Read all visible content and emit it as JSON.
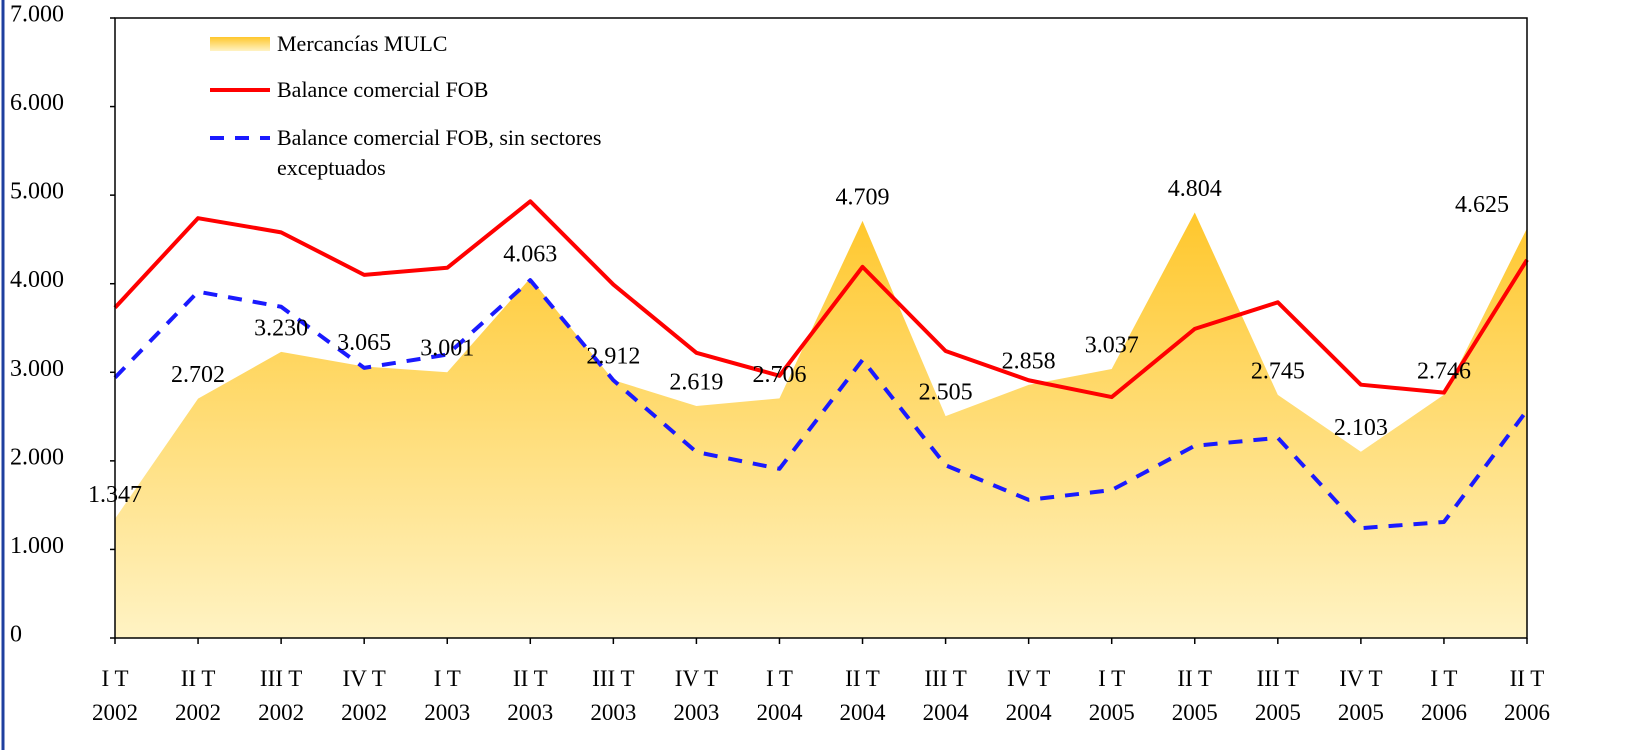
{
  "chart_data": {
    "type": "line",
    "categories": [
      "I T\n2002",
      "II T\n2002",
      "III T\n2002",
      "IV T\n2002",
      "I T\n2003",
      "II T\n2003",
      "III T\n2003",
      "IV T\n2003",
      "I T\n2004",
      "II T\n2004",
      "III T\n2004",
      "IV T\n2004",
      "I T\n2005",
      "II T\n2005",
      "III T\n2005",
      "IV T\n2005",
      "I T\n2006",
      "II T\n2006"
    ],
    "series": [
      {
        "name": "Mercancías MULC",
        "kind": "area",
        "color": "#ffc72c",
        "values": [
          1347,
          2702,
          3230,
          3065,
          3001,
          4063,
          2912,
          2619,
          2706,
          4709,
          2505,
          2858,
          3037,
          4804,
          2745,
          2103,
          2746,
          4625
        ],
        "value_labels": [
          "1.347",
          "2.702",
          "3.230",
          "3.065",
          "3.001",
          "4.063",
          "2.912",
          "2.619",
          "2.706",
          "4.709",
          "2.505",
          "2.858",
          "3.037",
          "4.804",
          "2.745",
          "2.103",
          "2.746",
          "4.625"
        ]
      },
      {
        "name": "Balance comercial FOB",
        "kind": "line",
        "color": "#ff0000",
        "values": [
          3730,
          4740,
          4580,
          4100,
          4180,
          4930,
          3990,
          3220,
          2960,
          4190,
          3240,
          2910,
          2720,
          3490,
          3790,
          2860,
          2770,
          4270
        ]
      },
      {
        "name": "Balance comercial FOB, sin sectores exceptuados",
        "kind": "dashed",
        "color": "#1a1aff",
        "values": [
          2940,
          3910,
          3740,
          3050,
          3200,
          4040,
          2910,
          2100,
          1910,
          3140,
          1950,
          1560,
          1670,
          2170,
          2260,
          1240,
          1310,
          2570
        ]
      }
    ],
    "ylim": [
      0,
      7000
    ],
    "yticks": [
      0,
      {
        "value": 1000,
        "label": "1.000"
      },
      {
        "value": 2000,
        "label": "2.000"
      },
      {
        "value": 3000,
        "label": "3.000"
      },
      {
        "value": 4000,
        "label": "4.000"
      },
      {
        "value": 5000,
        "label": "5.000"
      },
      {
        "value": 6000,
        "label": "6.000"
      },
      {
        "value": 7000,
        "label": "7.000"
      }
    ],
    "grid": false
  }
}
